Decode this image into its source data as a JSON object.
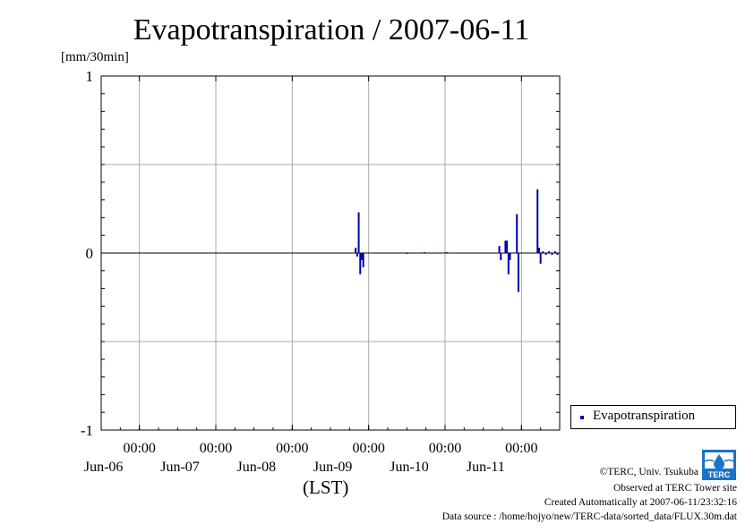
{
  "title": "Evapotranspiration / 2007-06-11",
  "unit_label": "[mm/30min]",
  "xaxis_label": "(LST)",
  "colors": {
    "series": "#0000b0",
    "grid": "#aaaaaa",
    "zero": "#000000"
  },
  "chart_data": {
    "type": "bar",
    "title": "Evapotranspiration / 2007-06-11",
    "ylabel": "[mm/30min]",
    "xlabel": "(LST)",
    "ylim": [
      -1,
      1
    ],
    "yticks": [
      {
        "value": 1,
        "label": "1"
      },
      {
        "value": 0,
        "label": "0"
      },
      {
        "value": -1,
        "label": "-1"
      }
    ],
    "xlim": [
      0,
      6
    ],
    "xticks": [
      {
        "value": 0.5,
        "time": "00:00",
        "date": "Jun-06"
      },
      {
        "value": 1.5,
        "time": "00:00",
        "date": "Jun-07"
      },
      {
        "value": 2.5,
        "time": "00:00",
        "date": "Jun-08"
      },
      {
        "value": 3.5,
        "time": "00:00",
        "date": "Jun-09"
      },
      {
        "value": 4.5,
        "time": "00:00",
        "date": "Jun-10"
      },
      {
        "value": 5.5,
        "time": "00:00",
        "date": "Jun-11"
      }
    ],
    "grid": true,
    "legend_position": "right-bottom",
    "series": [
      {
        "name": "Evapotranspiration",
        "points": [
          [
            3.33,
            0.03
          ],
          [
            3.35,
            -0.02
          ],
          [
            3.37,
            0.23
          ],
          [
            3.39,
            -0.12
          ],
          [
            3.41,
            -0.04
          ],
          [
            3.43,
            -0.08
          ],
          [
            4.0,
            -0.005
          ],
          [
            4.23,
            0.005
          ],
          [
            4.52,
            0.005
          ],
          [
            5.21,
            0.04
          ],
          [
            5.23,
            -0.04
          ],
          [
            5.29,
            0.07
          ],
          [
            5.31,
            0.07
          ],
          [
            5.33,
            -0.12
          ],
          [
            5.35,
            -0.04
          ],
          [
            5.44,
            0.22
          ],
          [
            5.46,
            -0.22
          ],
          [
            5.71,
            0.36
          ],
          [
            5.73,
            0.03
          ],
          [
            5.75,
            -0.06
          ],
          [
            5.78,
            0.01
          ],
          [
            5.82,
            -0.01
          ],
          [
            5.86,
            0.01
          ],
          [
            5.9,
            -0.01
          ],
          [
            5.94,
            0.01
          ],
          [
            5.97,
            -0.01
          ]
        ]
      }
    ]
  },
  "legend": {
    "label": "Evapotranspiration"
  },
  "footer": {
    "copyright": "©TERC, Univ. Tsukuba",
    "observed": "Observed at TERC Tower site",
    "created": "Created Automatically at 2007-06-11/23:32:16",
    "source": "Data source : /home/hojyo/new/TERC-data/sorted_data/FLUX.30m.dat"
  },
  "logo": {
    "icon": "terc-logo",
    "text": "TERC",
    "color": "#1a73c8"
  }
}
